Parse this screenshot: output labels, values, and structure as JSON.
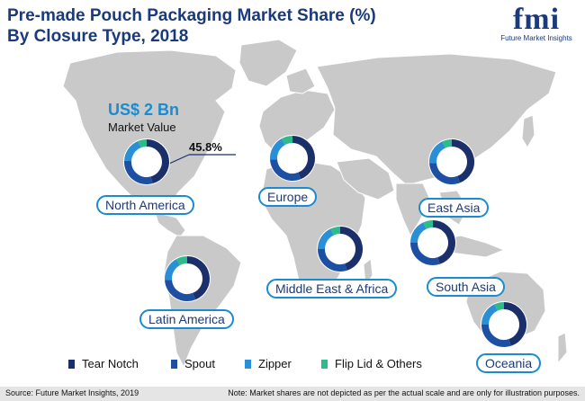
{
  "title": {
    "line1": "Pre-made Pouch Packaging Market Share (%)",
    "line2": "By Closure Type, 2018"
  },
  "logo": {
    "mark": "fmi",
    "subtitle": "Future Market Insights"
  },
  "market_value": {
    "value": "US$ 2 Bn",
    "label": "Market Value"
  },
  "highlight_share": "45.8%",
  "colors": {
    "tear_notch": "#1b2f6b",
    "spout": "#1d4fa3",
    "zipper": "#2b8fd6",
    "flip_lid": "#2dbb8a",
    "map": "#c9c9c9",
    "label_border": "#1a8bd0",
    "title": "#1b3a7c"
  },
  "legend": [
    {
      "label": "Tear Notch",
      "color": "#1b2f6b"
    },
    {
      "label": "Spout",
      "color": "#1d4fa3"
    },
    {
      "label": "Zipper",
      "color": "#2b8fd6"
    },
    {
      "label": "Flip Lid & Others",
      "color": "#2dbb8a"
    }
  ],
  "chart_data": {
    "type": "pie",
    "title": "Pre-made Pouch Packaging Market Share (%) By Closure Type, 2018",
    "series_names": [
      "Tear Notch",
      "Spout",
      "Zipper",
      "Flip Lid & Others"
    ],
    "regions": [
      {
        "name": "North America",
        "values": [
          45.8,
          30,
          18,
          6.2
        ]
      },
      {
        "name": "Europe",
        "values": [
          44,
          30,
          18,
          8
        ]
      },
      {
        "name": "East Asia",
        "values": [
          44,
          30,
          19,
          7
        ]
      },
      {
        "name": "Middle East & Africa",
        "values": [
          45,
          30,
          18,
          7
        ]
      },
      {
        "name": "South Asia",
        "values": [
          45,
          30,
          18,
          7
        ]
      },
      {
        "name": "Latin America",
        "values": [
          44,
          30,
          18,
          8
        ]
      },
      {
        "name": "Oceania",
        "values": [
          45,
          30,
          18,
          7
        ]
      }
    ]
  },
  "footer": {
    "source": "Source: Future Market Insights, 2019",
    "note": "Note: Market shares are not depicted as per the actual scale and are only for illustration purposes."
  }
}
